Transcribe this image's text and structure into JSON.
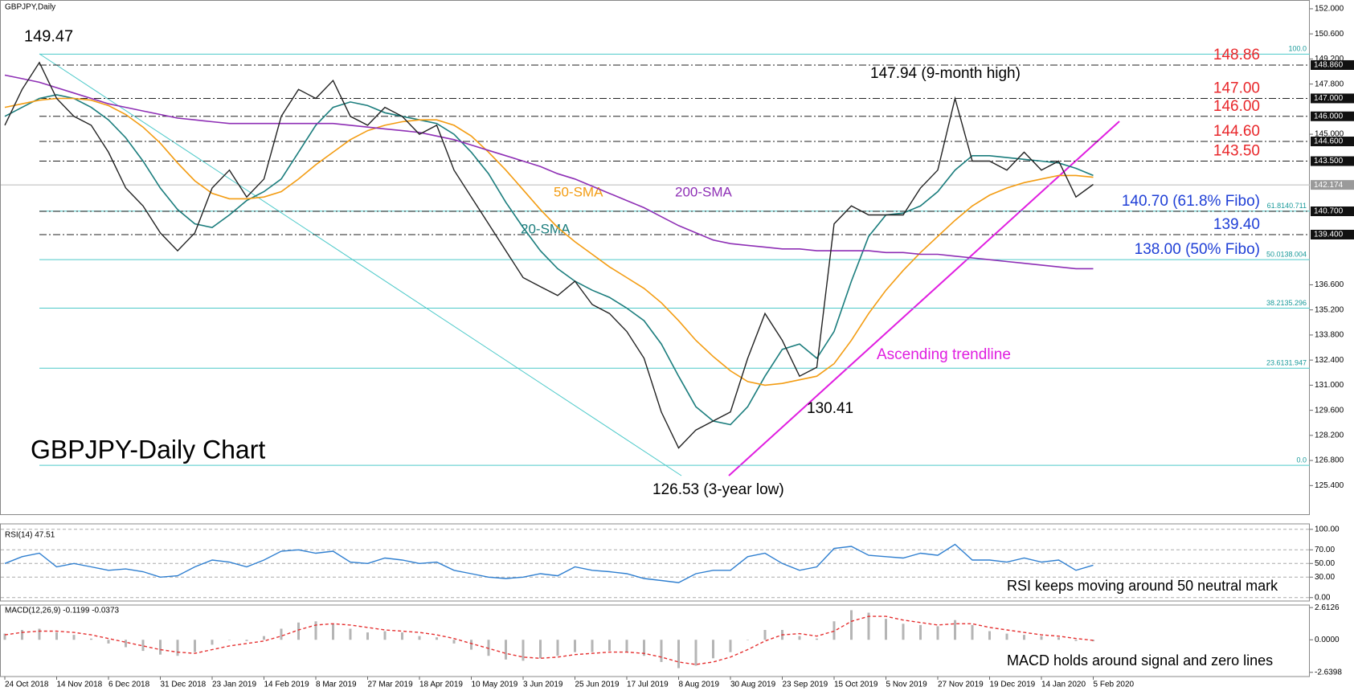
{
  "chart_data": [
    {
      "type": "line",
      "title": "GBPJPY,Daily",
      "subtitle": "GBPJPY-Daily Chart",
      "color": "#222222",
      "values": [
        145.5,
        147.5,
        149.0,
        147.0,
        146.0,
        145.5,
        144.0,
        142.0,
        141.0,
        139.5,
        138.5,
        139.5,
        142.0,
        143.0,
        141.5,
        142.5,
        146.0,
        147.5,
        147.0,
        148.0,
        146.0,
        145.5,
        146.5,
        146.0,
        145.0,
        145.5,
        143.0,
        141.5,
        140.0,
        138.5,
        137.0,
        136.5,
        136.0,
        136.8,
        135.5,
        135.0,
        134.0,
        132.5,
        129.5,
        127.5,
        128.5,
        129.0,
        129.5,
        132.5,
        135.0,
        133.5,
        131.5,
        132.0,
        140.0,
        141.0,
        140.5,
        140.5,
        140.5,
        142.0,
        143.0,
        147.0,
        143.5,
        143.5,
        143.0,
        144.0,
        143.0,
        143.5,
        141.5,
        142.2
      ],
      "series": [
        {
          "name": "20-SMA",
          "color": "#1b7d7d",
          "values": [
            146,
            146.5,
            147,
            147.2,
            147,
            146.5,
            145.8,
            144.8,
            143.5,
            142,
            140.8,
            140,
            139.8,
            140.5,
            141.3,
            141.8,
            142.5,
            144,
            145.5,
            146.5,
            146.8,
            146.6,
            146.2,
            146,
            145.8,
            145.6,
            145,
            144,
            142.8,
            141.2,
            139.8,
            138.5,
            137.5,
            136.8,
            136.3,
            135.9,
            135.3,
            134.6,
            133.3,
            131.5,
            129.8,
            129.0,
            128.8,
            129.8,
            131.5,
            133,
            133.3,
            132.5,
            134,
            136.8,
            139.3,
            140.5,
            140.6,
            141,
            141.8,
            143,
            143.8,
            143.8,
            143.7,
            143.6,
            143.5,
            143.4,
            143.1,
            142.7
          ]
        },
        {
          "name": "50-SMA",
          "color": "#f39c12",
          "values": [
            146.5,
            146.7,
            146.9,
            147,
            147,
            146.9,
            146.6,
            146.1,
            145.4,
            144.5,
            143.4,
            142.4,
            141.7,
            141.4,
            141.4,
            141.5,
            141.8,
            142.5,
            143.3,
            144,
            144.7,
            145.2,
            145.5,
            145.7,
            145.8,
            145.8,
            145.5,
            144.9,
            144,
            143,
            141.9,
            140.8,
            139.8,
            139,
            138.3,
            137.6,
            137,
            136.4,
            135.6,
            134.6,
            133.5,
            132.6,
            131.8,
            131.2,
            131.0,
            131.1,
            131.3,
            131.5,
            132.2,
            133.5,
            135,
            136.3,
            137.4,
            138.4,
            139.3,
            140.2,
            141,
            141.6,
            142,
            142.3,
            142.5,
            142.7,
            142.7,
            142.6
          ]
        },
        {
          "name": "200-SMA",
          "color": "#8e2fb5",
          "values": [
            148.3,
            148.1,
            147.9,
            147.6,
            147.3,
            147.0,
            146.7,
            146.5,
            146.3,
            146.1,
            145.9,
            145.8,
            145.7,
            145.6,
            145.6,
            145.6,
            145.6,
            145.6,
            145.6,
            145.6,
            145.5,
            145.4,
            145.3,
            145.2,
            145.1,
            144.9,
            144.7,
            144.4,
            144.1,
            143.8,
            143.5,
            143.2,
            142.8,
            142.5,
            142.1,
            141.7,
            141.3,
            140.9,
            140.4,
            139.9,
            139.5,
            139.1,
            138.9,
            138.8,
            138.7,
            138.6,
            138.6,
            138.5,
            138.5,
            138.5,
            138.5,
            138.4,
            138.4,
            138.3,
            138.3,
            138.2,
            138.1,
            138.0,
            137.9,
            137.8,
            137.7,
            137.6,
            137.5,
            137.5
          ]
        }
      ],
      "ylim": [
        123.8,
        152.4
      ],
      "yticks": [
        {
          "value": 152,
          "label": "152.000"
        },
        {
          "value": 150.6,
          "label": "150.600"
        },
        {
          "value": 149.2,
          "label": "149.200"
        },
        {
          "value": 147.8,
          "label": "147.800"
        },
        {
          "value": 145,
          "label": "145.000"
        },
        {
          "value": 136.6,
          "label": "136.600"
        },
        {
          "value": 135.2,
          "label": "135.200"
        },
        {
          "value": 133.8,
          "label": "133.800"
        },
        {
          "value": 132.4,
          "label": "132.400"
        },
        {
          "value": 131,
          "label": "131.000"
        },
        {
          "value": 129.6,
          "label": "129.600"
        },
        {
          "value": 128.2,
          "label": "128.200"
        },
        {
          "value": 126.8,
          "label": "126.800"
        },
        {
          "value": 125.4,
          "label": "125.400"
        }
      ],
      "levels": [
        {
          "value": 148.86,
          "label": "148.860",
          "note": "148.86",
          "note_color": "#e8262a"
        },
        {
          "value": 147.0,
          "label": "147.000",
          "note": "147.00",
          "note_color": "#e8262a"
        },
        {
          "value": 146.0,
          "label": "146.000",
          "note": "146.00",
          "note_color": "#e8262a"
        },
        {
          "value": 144.6,
          "label": "144.600",
          "note": "144.60",
          "note_color": "#e8262a"
        },
        {
          "value": 143.5,
          "label": "143.500",
          "note": "143.50",
          "note_color": "#e8262a"
        },
        {
          "value": 140.7,
          "label": "140.700",
          "note": "140.70 (61.8% Fibo)",
          "note_color": "#1f3fd6"
        },
        {
          "value": 139.4,
          "label": "139.400",
          "note": "139.40",
          "note_color": "#1f3fd6"
        }
      ],
      "current": {
        "value": 142.174,
        "label": "142.174"
      },
      "fibo": [
        {
          "value": 149.47,
          "label": "100.0"
        },
        {
          "value": 140.711,
          "label": "61.8140.711"
        },
        {
          "value": 138.004,
          "label": "50.0138.004",
          "note": "138.00 (50% Fibo)",
          "note_color": "#1f3fd6"
        },
        {
          "value": 135.296,
          "label": "38.2135.296"
        },
        {
          "value": 131.947,
          "label": "23.6131.947"
        },
        {
          "value": 126.53,
          "label": "0.0"
        }
      ],
      "annotations": {
        "high": "149.47",
        "nine_month_high": "147.94 (9-month high)",
        "september_low": "130.41",
        "low": "126.53 (3-year low)",
        "trendline": "Ascending trendline"
      }
    },
    {
      "type": "line",
      "title": "RSI(14) 47.51",
      "annotation": "RSI keeps moving around 50 neutral mark",
      "color": "#2f7fd0",
      "values": [
        50,
        60,
        65,
        45,
        50,
        45,
        40,
        42,
        38,
        30,
        32,
        45,
        55,
        52,
        45,
        55,
        68,
        70,
        65,
        68,
        52,
        50,
        58,
        55,
        50,
        52,
        40,
        35,
        30,
        28,
        30,
        35,
        32,
        45,
        40,
        38,
        35,
        28,
        25,
        22,
        35,
        40,
        40,
        60,
        65,
        50,
        40,
        45,
        72,
        75,
        62,
        60,
        58,
        65,
        62,
        78,
        55,
        55,
        52,
        58,
        52,
        55,
        40,
        47.5
      ],
      "ylim": [
        -5,
        108
      ],
      "yticks": [
        {
          "value": 100,
          "label": "100.00"
        },
        {
          "value": 70,
          "label": "70.00"
        },
        {
          "value": 50,
          "label": "50.00"
        },
        {
          "value": 30,
          "label": "30.00"
        },
        {
          "value": 0,
          "label": "0.00"
        }
      ],
      "grid": true
    },
    {
      "type": "bar",
      "title": "MACD(12,26,9) -0.1199 -0.0373",
      "annotation": "MACD holds around signal and zero lines",
      "categories": [
        "24 Oct 2018",
        null,
        null,
        "14 Nov 2018",
        null,
        null,
        "6 Dec 2018",
        null,
        null,
        "31 Dec 2018",
        null,
        null,
        "23 Jan 2019",
        null,
        null,
        "14 Feb 2019",
        null,
        null,
        "8 Mar 2019",
        null,
        null,
        "27 Mar 2019",
        null,
        null,
        "18 Apr 2019",
        null,
        null,
        "10 May 2019",
        null,
        null,
        "3 Jun 2019",
        null,
        null,
        "25 Jun 2019",
        null,
        null,
        "17 Jul 2019",
        null,
        null,
        "8 Aug 2019",
        null,
        null,
        "30 Aug 2019",
        null,
        null,
        "23 Sep 2019",
        null,
        null,
        "15 Oct 2019",
        null,
        null,
        "5 Nov 2019",
        null,
        null,
        "27 Nov 2019",
        null,
        null,
        "19 Dec 2019",
        null,
        null,
        "14 Jan 2020",
        null,
        null,
        "5 Feb 2020"
      ],
      "series": [
        {
          "color": "#b5b5b5",
          "style": "bar",
          "values": [
            0.5,
            0.8,
            0.9,
            0.6,
            0.4,
            0.1,
            -0.3,
            -0.6,
            -0.9,
            -1.2,
            -1.3,
            -1.0,
            -0.4,
            0,
            -0.1,
            0.3,
            0.9,
            1.4,
            1.5,
            1.3,
            0.9,
            0.6,
            0.7,
            0.6,
            0.3,
            0.2,
            -0.3,
            -0.8,
            -1.3,
            -1.6,
            -1.7,
            -1.5,
            -1.3,
            -1.0,
            -1.0,
            -0.9,
            -1.0,
            -1.3,
            -1.8,
            -2.3,
            -2.1,
            -1.5,
            -1.0,
            0.0,
            0.8,
            0.8,
            0.3,
            0.1,
            1.5,
            2.4,
            2.2,
            1.7,
            1.3,
            1.2,
            1.1,
            1.6,
            1.2,
            0.7,
            0.5,
            0.4,
            0.3,
            0.2,
            -0.1,
            -0.12
          ]
        },
        {
          "color": "#e53030",
          "style": "dash",
          "values": [
            0.4,
            0.6,
            0.7,
            0.7,
            0.6,
            0.4,
            0.1,
            -0.2,
            -0.5,
            -0.8,
            -1.0,
            -1.1,
            -0.8,
            -0.5,
            -0.3,
            -0.1,
            0.3,
            0.8,
            1.2,
            1.3,
            1.2,
            1.0,
            0.8,
            0.7,
            0.6,
            0.4,
            0.1,
            -0.3,
            -0.7,
            -1.1,
            -1.4,
            -1.5,
            -1.4,
            -1.2,
            -1.1,
            -1.0,
            -1.0,
            -1.1,
            -1.4,
            -1.8,
            -2.0,
            -1.8,
            -1.4,
            -0.8,
            -0.1,
            0.4,
            0.5,
            0.3,
            0.7,
            1.5,
            1.9,
            1.9,
            1.6,
            1.4,
            1.2,
            1.3,
            1.3,
            1.0,
            0.8,
            0.6,
            0.4,
            0.3,
            0.1,
            -0.04
          ]
        }
      ],
      "ylim": [
        -2.98,
        2.82
      ],
      "yticks": [
        {
          "value": 2.6126,
          "label": "2.6126"
        },
        {
          "value": 0,
          "label": "0.0000"
        },
        {
          "value": -2.6398,
          "label": "-2.6398"
        }
      ]
    }
  ]
}
